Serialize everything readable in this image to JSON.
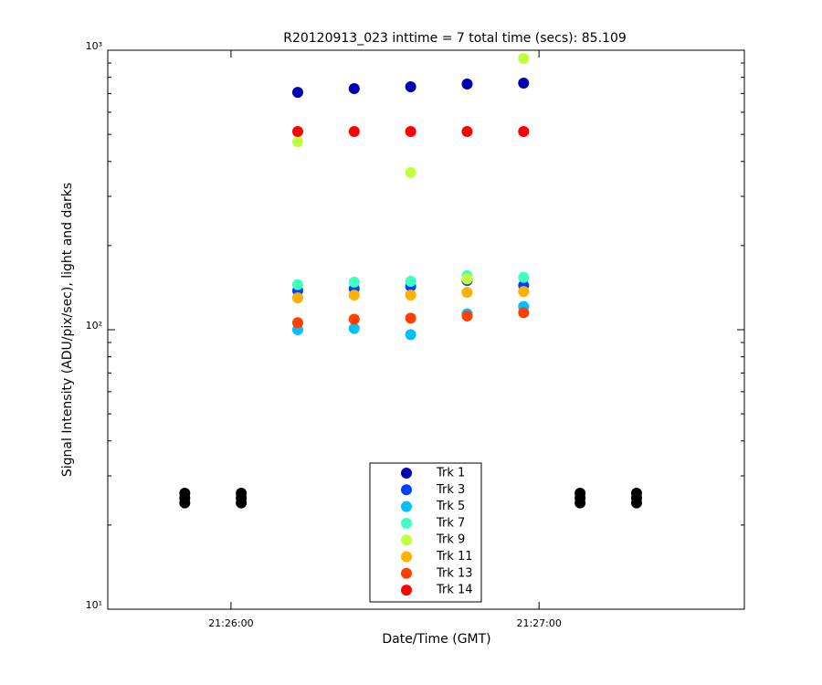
{
  "chart_data": {
    "type": "scatter",
    "title": "R20120913_023 inttime = 7 total time (secs): 85.109",
    "x_label": "Date/Time (GMT)",
    "y_label": "Signal Intensity (ADU/pix/sec), light and darks",
    "log_y": true,
    "xlim": [
      77136,
      77260
    ],
    "xticks": [
      {
        "value": 77160,
        "label": "21:26:00"
      },
      {
        "value": 77220,
        "label": "21:27:00"
      }
    ],
    "ylim": [
      10,
      1000
    ],
    "yticks": [
      {
        "value": 10,
        "label": "10¹"
      },
      {
        "value": 100,
        "label": "10²"
      },
      {
        "value": 1000,
        "label": "10³"
      }
    ],
    "legend_position": "bottom",
    "x": [
      77173,
      77184,
      77195,
      77206,
      77217
    ],
    "series": [
      {
        "name": "Trk 1",
        "color": "#0000b0",
        "values": [
          707,
          729,
          740,
          757,
          763
        ]
      },
      {
        "name": "Trk 3",
        "color": "#0040ff",
        "values": [
          138,
          140,
          143,
          150,
          144
        ]
      },
      {
        "name": "Trk 5",
        "color": "#00c0ff",
        "values": [
          100,
          101,
          96,
          114,
          121
        ]
      },
      {
        "name": "Trk 7",
        "color": "#40ffc0",
        "values": [
          145,
          148,
          149,
          156,
          154
        ]
      },
      {
        "name": "Trk 9",
        "color": "#c0ff40",
        "values": [
          471,
          null,
          365,
          152,
          934
        ]
      },
      {
        "name": "Trk 11",
        "color": "#ffb000",
        "values": [
          130,
          133,
          133,
          136,
          137
        ]
      },
      {
        "name": "Trk 13",
        "color": "#ff4000",
        "values": [
          106,
          109,
          110,
          112,
          115
        ]
      },
      {
        "name": "Trk 14",
        "color": "#ff0000",
        "values": [
          512,
          512,
          512,
          512,
          512
        ]
      }
    ],
    "darks": {
      "color": "#000000",
      "x": [
        77151,
        77151,
        77151,
        77162,
        77162,
        77162,
        77228,
        77228,
        77228,
        77239,
        77239,
        77239
      ],
      "values": [
        24,
        25,
        26,
        24,
        25,
        26,
        24,
        25,
        26,
        24,
        25,
        26
      ]
    }
  }
}
